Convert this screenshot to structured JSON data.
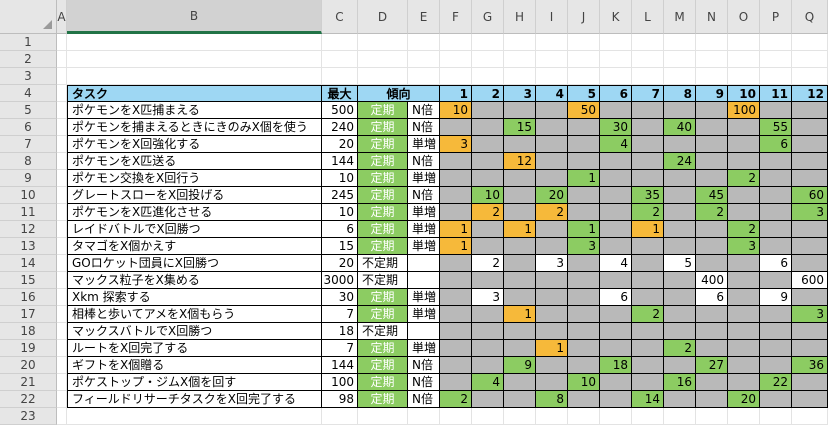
{
  "columns": [
    "A",
    "B",
    "C",
    "D",
    "E",
    "F",
    "G",
    "H",
    "I",
    "J",
    "K",
    "L",
    "M",
    "N",
    "O",
    "P",
    "Q"
  ],
  "row_numbers": [
    "1",
    "2",
    "3",
    "4",
    "5",
    "6",
    "7",
    "8",
    "9",
    "10",
    "11",
    "12",
    "13",
    "14",
    "15",
    "16",
    "17",
    "18",
    "19",
    "20",
    "21",
    "22",
    "23"
  ],
  "header": {
    "task": "タスク",
    "max": "最大",
    "trend": "傾向",
    "days": [
      "1",
      "2",
      "3",
      "4",
      "5",
      "6",
      "7",
      "8",
      "9",
      "10",
      "11",
      "12"
    ]
  },
  "colors": {
    "header": "#9ed7f3",
    "active": "#8ccc62",
    "highlight": "#f6b93a",
    "inactive": "#b9b9b9"
  },
  "tasks": [
    {
      "name": "ポケモンをX匹捕まえる",
      "max": "500",
      "trend": "定期",
      "kind": "N倍",
      "cells": [
        [
          "10",
          "o"
        ],
        [
          "",
          "g"
        ],
        [
          "",
          "g"
        ],
        [
          "",
          "g"
        ],
        [
          "50",
          "o"
        ],
        [
          "",
          "g"
        ],
        [
          "",
          "g"
        ],
        [
          "",
          "g"
        ],
        [
          "",
          "g"
        ],
        [
          "100",
          "o"
        ],
        [
          "",
          "g"
        ],
        [
          "",
          "g"
        ]
      ]
    },
    {
      "name": "ポケモンを捕まえるときにきのみX個を使う",
      "max": "240",
      "trend": "定期",
      "kind": "N倍",
      "cells": [
        [
          "",
          "g"
        ],
        [
          "",
          "g"
        ],
        [
          "15",
          "G"
        ],
        [
          "",
          "g"
        ],
        [
          "",
          "g"
        ],
        [
          "30",
          "G"
        ],
        [
          "",
          "g"
        ],
        [
          "40",
          "G"
        ],
        [
          "",
          "g"
        ],
        [
          "",
          "g"
        ],
        [
          "55",
          "G"
        ],
        [
          "",
          "g"
        ]
      ]
    },
    {
      "name": "ポケモンをX回強化する",
      "max": "20",
      "trend": "定期",
      "kind": "単増",
      "cells": [
        [
          "3",
          "o"
        ],
        [
          "",
          "g"
        ],
        [
          "",
          "g"
        ],
        [
          "",
          "g"
        ],
        [
          "",
          "g"
        ],
        [
          "4",
          "G"
        ],
        [
          "",
          "g"
        ],
        [
          "",
          "g"
        ],
        [
          "",
          "g"
        ],
        [
          "",
          "g"
        ],
        [
          "6",
          "G"
        ],
        [
          "",
          "g"
        ]
      ]
    },
    {
      "name": "ポケモンをX匹送る",
      "max": "144",
      "trend": "定期",
      "kind": "N倍",
      "cells": [
        [
          "",
          "g"
        ],
        [
          "",
          "g"
        ],
        [
          "12",
          "o"
        ],
        [
          "",
          "g"
        ],
        [
          "",
          "g"
        ],
        [
          "",
          "g"
        ],
        [
          "",
          "g"
        ],
        [
          "24",
          "G"
        ],
        [
          "",
          "g"
        ],
        [
          "",
          "g"
        ],
        [
          "",
          "g"
        ],
        [
          "",
          "g"
        ]
      ]
    },
    {
      "name": "ポケモン交換をX回行う",
      "max": "10",
      "trend": "定期",
      "kind": "単増",
      "cells": [
        [
          "",
          "g"
        ],
        [
          "",
          "g"
        ],
        [
          "",
          "g"
        ],
        [
          "",
          "g"
        ],
        [
          "1",
          "G"
        ],
        [
          "",
          "g"
        ],
        [
          "",
          "g"
        ],
        [
          "",
          "g"
        ],
        [
          "",
          "g"
        ],
        [
          "2",
          "G"
        ],
        [
          "",
          "g"
        ],
        [
          "",
          "g"
        ]
      ]
    },
    {
      "name": "グレートスローをX回投げる",
      "max": "245",
      "trend": "定期",
      "kind": "N倍",
      "cells": [
        [
          "",
          "g"
        ],
        [
          "10",
          "G"
        ],
        [
          "",
          "g"
        ],
        [
          "20",
          "G"
        ],
        [
          "",
          "g"
        ],
        [
          "",
          "g"
        ],
        [
          "35",
          "G"
        ],
        [
          "",
          "g"
        ],
        [
          "45",
          "G"
        ],
        [
          "",
          "g"
        ],
        [
          "",
          "g"
        ],
        [
          "60",
          "G"
        ]
      ]
    },
    {
      "name": "ポケモンをX匹進化させる",
      "max": "10",
      "trend": "定期",
      "kind": "単増",
      "cells": [
        [
          "",
          "g"
        ],
        [
          "2",
          "o"
        ],
        [
          "",
          "g"
        ],
        [
          "2",
          "o"
        ],
        [
          "",
          "g"
        ],
        [
          "",
          "g"
        ],
        [
          "2",
          "G"
        ],
        [
          "",
          "g"
        ],
        [
          "2",
          "G"
        ],
        [
          "",
          "g"
        ],
        [
          "",
          "g"
        ],
        [
          "3",
          "G"
        ]
      ]
    },
    {
      "name": "レイドバトルでX回勝つ",
      "max": "6",
      "trend": "定期",
      "kind": "単増",
      "cells": [
        [
          "1",
          "o"
        ],
        [
          "",
          "g"
        ],
        [
          "1",
          "o"
        ],
        [
          "",
          "g"
        ],
        [
          "1",
          "G"
        ],
        [
          "",
          "g"
        ],
        [
          "1",
          "o"
        ],
        [
          "",
          "g"
        ],
        [
          "",
          "g"
        ],
        [
          "2",
          "G"
        ],
        [
          "",
          "g"
        ],
        [
          "",
          "g"
        ]
      ]
    },
    {
      "name": "タマゴをX個かえす",
      "max": "15",
      "trend": "定期",
      "kind": "単増",
      "cells": [
        [
          "1",
          "o"
        ],
        [
          "",
          "g"
        ],
        [
          "",
          "g"
        ],
        [
          "",
          "g"
        ],
        [
          "3",
          "G"
        ],
        [
          "",
          "g"
        ],
        [
          "",
          "g"
        ],
        [
          "",
          "g"
        ],
        [
          "",
          "g"
        ],
        [
          "3",
          "G"
        ],
        [
          "",
          "g"
        ],
        [
          "",
          "g"
        ]
      ]
    },
    {
      "name": "GOロケット団員にX回勝つ",
      "max": "20",
      "trend": "不定期",
      "kind": "",
      "cells": [
        [
          "",
          "g"
        ],
        [
          "2",
          "w"
        ],
        [
          "",
          "g"
        ],
        [
          "3",
          "w"
        ],
        [
          "",
          "g"
        ],
        [
          "4",
          "w"
        ],
        [
          "",
          "g"
        ],
        [
          "5",
          "w"
        ],
        [
          "",
          "g"
        ],
        [
          "",
          "g"
        ],
        [
          "6",
          "w"
        ],
        [
          "",
          "g"
        ]
      ]
    },
    {
      "name": "マックス粒子をX集める",
      "max": "3000",
      "trend": "不定期",
      "kind": "",
      "cells": [
        [
          "",
          "g"
        ],
        [
          "",
          "g"
        ],
        [
          "",
          "g"
        ],
        [
          "",
          "g"
        ],
        [
          "",
          "g"
        ],
        [
          "",
          "g"
        ],
        [
          "",
          "g"
        ],
        [
          "",
          "g"
        ],
        [
          "400",
          "w"
        ],
        [
          "",
          "g"
        ],
        [
          "",
          "g"
        ],
        [
          "600",
          "w"
        ]
      ]
    },
    {
      "name": "Xkm 探索する",
      "max": "30",
      "trend": "定期",
      "kind": "単増",
      "cells": [
        [
          "",
          "g"
        ],
        [
          "3",
          "w"
        ],
        [
          "",
          "g"
        ],
        [
          "",
          "g"
        ],
        [
          "",
          "g"
        ],
        [
          "6",
          "w"
        ],
        [
          "",
          "g"
        ],
        [
          "",
          "g"
        ],
        [
          "6",
          "w"
        ],
        [
          "",
          "g"
        ],
        [
          "9",
          "w"
        ],
        [
          "",
          "g"
        ]
      ]
    },
    {
      "name": "相棒と歩いてアメをX個もらう",
      "max": "7",
      "trend": "定期",
      "kind": "単増",
      "cells": [
        [
          "",
          "g"
        ],
        [
          "",
          "g"
        ],
        [
          "1",
          "o"
        ],
        [
          "",
          "g"
        ],
        [
          "",
          "g"
        ],
        [
          "",
          "g"
        ],
        [
          "2",
          "G"
        ],
        [
          "",
          "g"
        ],
        [
          "",
          "g"
        ],
        [
          "",
          "g"
        ],
        [
          "",
          "g"
        ],
        [
          "3",
          "G"
        ]
      ]
    },
    {
      "name": "マックスバトルでX回勝つ",
      "max": "18",
      "trend": "不定期",
      "kind": "",
      "cells": [
        [
          "",
          "g"
        ],
        [
          "",
          "g"
        ],
        [
          "",
          "g"
        ],
        [
          "",
          "g"
        ],
        [
          "",
          "g"
        ],
        [
          "",
          "g"
        ],
        [
          "",
          "g"
        ],
        [
          "",
          "g"
        ],
        [
          "",
          "g"
        ],
        [
          "",
          "g"
        ],
        [
          "",
          "g"
        ],
        [
          "",
          "g"
        ]
      ]
    },
    {
      "name": "ルートをX回完了する",
      "max": "7",
      "trend": "定期",
      "kind": "単増",
      "cells": [
        [
          "",
          "g"
        ],
        [
          "",
          "g"
        ],
        [
          "",
          "g"
        ],
        [
          "1",
          "o"
        ],
        [
          "",
          "g"
        ],
        [
          "",
          "g"
        ],
        [
          "",
          "g"
        ],
        [
          "2",
          "G"
        ],
        [
          "",
          "g"
        ],
        [
          "",
          "g"
        ],
        [
          "",
          "g"
        ],
        [
          "",
          "g"
        ]
      ]
    },
    {
      "name": "ギフトをX個贈る",
      "max": "144",
      "trend": "定期",
      "kind": "N倍",
      "cells": [
        [
          "",
          "g"
        ],
        [
          "",
          "g"
        ],
        [
          "9",
          "G"
        ],
        [
          "",
          "g"
        ],
        [
          "",
          "g"
        ],
        [
          "18",
          "G"
        ],
        [
          "",
          "g"
        ],
        [
          "",
          "g"
        ],
        [
          "27",
          "G"
        ],
        [
          "",
          "g"
        ],
        [
          "",
          "g"
        ],
        [
          "36",
          "G"
        ]
      ]
    },
    {
      "name": "ポケストップ・ジムX個を回す",
      "max": "100",
      "trend": "定期",
      "kind": "N倍",
      "cells": [
        [
          "",
          "g"
        ],
        [
          "4",
          "G"
        ],
        [
          "",
          "g"
        ],
        [
          "",
          "g"
        ],
        [
          "10",
          "G"
        ],
        [
          "",
          "g"
        ],
        [
          "",
          "g"
        ],
        [
          "16",
          "G"
        ],
        [
          "",
          "g"
        ],
        [
          "",
          "g"
        ],
        [
          "22",
          "G"
        ],
        [
          "",
          "g"
        ]
      ]
    },
    {
      "name": "フィールドリサーチタスクをX回完了する",
      "max": "98",
      "trend": "定期",
      "kind": "N倍",
      "cells": [
        [
          "2",
          "G"
        ],
        [
          "",
          "g"
        ],
        [
          "",
          "g"
        ],
        [
          "8",
          "G"
        ],
        [
          "",
          "g"
        ],
        [
          "",
          "g"
        ],
        [
          "14",
          "G"
        ],
        [
          "",
          "g"
        ],
        [
          "",
          "g"
        ],
        [
          "20",
          "G"
        ],
        [
          "",
          "g"
        ],
        [
          "",
          "g"
        ]
      ]
    }
  ]
}
